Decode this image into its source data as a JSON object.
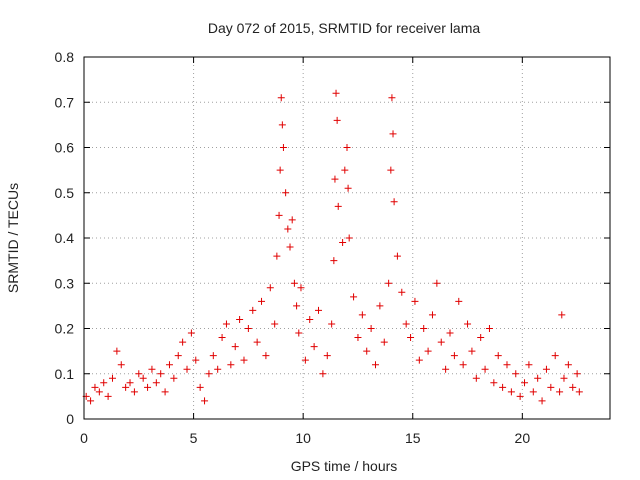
{
  "chart_data": {
    "type": "scatter",
    "title": "Day 072 of 2015, SRMTID for receiver lama",
    "xlabel": "GPS time / hours",
    "ylabel": "SRMTID / TECUs",
    "xlim": [
      0,
      24
    ],
    "ylim": [
      0,
      0.8
    ],
    "x_ticks": [
      0,
      5,
      10,
      15,
      20
    ],
    "x_tick_labels": [
      "0",
      "5",
      "10",
      "15",
      "20"
    ],
    "y_ticks": [
      0,
      0.1,
      0.2,
      0.3,
      0.4,
      0.5,
      0.6,
      0.7,
      0.8
    ],
    "y_tick_labels": [
      "0",
      "0.1",
      "0.2",
      "0.3",
      "0.4",
      "0.5",
      "0.6",
      "0.7",
      "0.8"
    ],
    "grid": true,
    "marker": "+",
    "marker_color": "#e00000",
    "series": [
      {
        "name": "SRMTID",
        "points": [
          [
            0.1,
            0.05
          ],
          [
            0.3,
            0.04
          ],
          [
            0.5,
            0.07
          ],
          [
            0.7,
            0.06
          ],
          [
            0.9,
            0.08
          ],
          [
            1.1,
            0.05
          ],
          [
            1.3,
            0.09
          ],
          [
            1.5,
            0.15
          ],
          [
            1.7,
            0.12
          ],
          [
            1.9,
            0.07
          ],
          [
            2.1,
            0.08
          ],
          [
            2.3,
            0.06
          ],
          [
            2.5,
            0.1
          ],
          [
            2.7,
            0.09
          ],
          [
            2.9,
            0.07
          ],
          [
            3.1,
            0.11
          ],
          [
            3.3,
            0.08
          ],
          [
            3.5,
            0.1
          ],
          [
            3.7,
            0.06
          ],
          [
            3.9,
            0.12
          ],
          [
            4.1,
            0.09
          ],
          [
            4.3,
            0.14
          ],
          [
            4.5,
            0.17
          ],
          [
            4.7,
            0.11
          ],
          [
            4.9,
            0.19
          ],
          [
            5.1,
            0.13
          ],
          [
            5.3,
            0.07
          ],
          [
            5.5,
            0.04
          ],
          [
            5.7,
            0.1
          ],
          [
            5.9,
            0.14
          ],
          [
            6.1,
            0.11
          ],
          [
            6.3,
            0.18
          ],
          [
            6.5,
            0.21
          ],
          [
            6.7,
            0.12
          ],
          [
            6.9,
            0.16
          ],
          [
            7.1,
            0.22
          ],
          [
            7.3,
            0.13
          ],
          [
            7.5,
            0.2
          ],
          [
            7.7,
            0.24
          ],
          [
            7.9,
            0.17
          ],
          [
            8.1,
            0.26
          ],
          [
            8.3,
            0.14
          ],
          [
            8.5,
            0.29
          ],
          [
            8.7,
            0.21
          ],
          [
            8.8,
            0.36
          ],
          [
            8.9,
            0.45
          ],
          [
            8.95,
            0.55
          ],
          [
            9.0,
            0.71
          ],
          [
            9.05,
            0.65
          ],
          [
            9.1,
            0.6
          ],
          [
            9.2,
            0.5
          ],
          [
            9.3,
            0.42
          ],
          [
            9.4,
            0.38
          ],
          [
            9.5,
            0.44
          ],
          [
            9.6,
            0.3
          ],
          [
            9.7,
            0.25
          ],
          [
            9.8,
            0.19
          ],
          [
            9.9,
            0.29
          ],
          [
            10.1,
            0.13
          ],
          [
            10.3,
            0.22
          ],
          [
            10.5,
            0.16
          ],
          [
            10.7,
            0.24
          ],
          [
            10.9,
            0.1
          ],
          [
            11.1,
            0.14
          ],
          [
            11.3,
            0.21
          ],
          [
            11.4,
            0.35
          ],
          [
            11.45,
            0.53
          ],
          [
            11.5,
            0.72
          ],
          [
            11.55,
            0.66
          ],
          [
            11.6,
            0.47
          ],
          [
            11.8,
            0.39
          ],
          [
            11.9,
            0.55
          ],
          [
            12.0,
            0.6
          ],
          [
            12.05,
            0.51
          ],
          [
            12.1,
            0.4
          ],
          [
            12.3,
            0.27
          ],
          [
            12.5,
            0.18
          ],
          [
            12.7,
            0.23
          ],
          [
            12.9,
            0.15
          ],
          [
            13.1,
            0.2
          ],
          [
            13.3,
            0.12
          ],
          [
            13.5,
            0.25
          ],
          [
            13.7,
            0.17
          ],
          [
            13.9,
            0.3
          ],
          [
            14.0,
            0.55
          ],
          [
            14.05,
            0.71
          ],
          [
            14.1,
            0.63
          ],
          [
            14.15,
            0.48
          ],
          [
            14.3,
            0.36
          ],
          [
            14.5,
            0.28
          ],
          [
            14.7,
            0.21
          ],
          [
            14.9,
            0.18
          ],
          [
            15.1,
            0.26
          ],
          [
            15.3,
            0.13
          ],
          [
            15.5,
            0.2
          ],
          [
            15.7,
            0.15
          ],
          [
            15.9,
            0.23
          ],
          [
            16.1,
            0.3
          ],
          [
            16.3,
            0.17
          ],
          [
            16.5,
            0.11
          ],
          [
            16.7,
            0.19
          ],
          [
            16.9,
            0.14
          ],
          [
            17.1,
            0.26
          ],
          [
            17.3,
            0.12
          ],
          [
            17.5,
            0.21
          ],
          [
            17.7,
            0.15
          ],
          [
            17.9,
            0.09
          ],
          [
            18.1,
            0.18
          ],
          [
            18.3,
            0.11
          ],
          [
            18.5,
            0.2
          ],
          [
            18.7,
            0.08
          ],
          [
            18.9,
            0.14
          ],
          [
            19.1,
            0.07
          ],
          [
            19.3,
            0.12
          ],
          [
            19.5,
            0.06
          ],
          [
            19.7,
            0.1
          ],
          [
            19.9,
            0.05
          ],
          [
            20.1,
            0.08
          ],
          [
            20.3,
            0.12
          ],
          [
            20.5,
            0.06
          ],
          [
            20.7,
            0.09
          ],
          [
            20.9,
            0.04
          ],
          [
            21.1,
            0.11
          ],
          [
            21.3,
            0.07
          ],
          [
            21.5,
            0.14
          ],
          [
            21.7,
            0.06
          ],
          [
            21.8,
            0.23
          ],
          [
            21.9,
            0.09
          ],
          [
            22.1,
            0.12
          ],
          [
            22.3,
            0.07
          ],
          [
            22.5,
            0.1
          ],
          [
            22.6,
            0.06
          ]
        ]
      }
    ]
  }
}
